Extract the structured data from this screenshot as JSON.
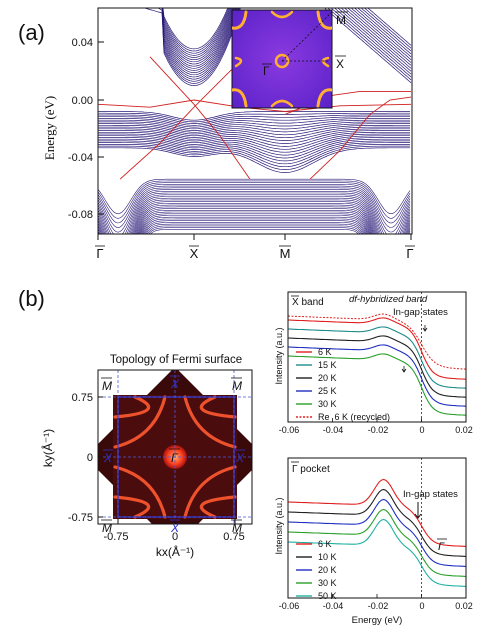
{
  "panel_a": {
    "label": "(a)",
    "ylabel": "Energy (eV)",
    "yticks": [
      "0.04",
      "0.00",
      "-0.04",
      "-0.08"
    ],
    "xticks": [
      "Γ",
      "X",
      "M",
      "Γ"
    ],
    "inset_labels": {
      "gamma": "Γ",
      "x": "X",
      "m": "M"
    },
    "colors": {
      "bulk_bands": "#2a1a78",
      "surface_bands": "#d02020",
      "inset_bg": "#6a2ad8",
      "inset_hot": "#ffb030"
    }
  },
  "panel_b": {
    "label": "(b)",
    "fermi_map": {
      "title": "Topology of Fermi surface",
      "xlabel": "kx(Å⁻¹)",
      "ylabel": "ky(Å⁻¹)",
      "xticks": [
        "-0.75",
        "0",
        "0.75"
      ],
      "yticks": [
        "0.75",
        "0",
        "-0.75"
      ],
      "point_labels": {
        "m": "M",
        "x": "X",
        "gamma": "Γ"
      },
      "colors": {
        "background": "#3a0a0a",
        "band": "#ff5a30",
        "bz": "#3030c8"
      }
    },
    "top_right": {
      "title": "X band",
      "annotation_hybrid": "df-hybridized band",
      "annotation_ingap": "In-gap states",
      "ylabel": "Intensity (a.u.)",
      "xticks": [
        "-0.06",
        "-0.04",
        "-0.02",
        "0",
        "0.02"
      ],
      "legend": [
        "6 K",
        "15 K",
        "20 K",
        "25 K",
        "30 K",
        "Re_6 K (recycled)"
      ],
      "colors": [
        "#e02020",
        "#1f8a8a",
        "#202020",
        "#2030c0",
        "#2aa02a",
        "#e02020"
      ]
    },
    "bottom_right": {
      "title": "Γ pocket",
      "annotation_ingap": "In-gap states",
      "gamma_label": "Γ",
      "ylabel": "Intensity (a.u.)",
      "xlabel": "Energy (eV)",
      "xticks": [
        "-0.06",
        "-0.04",
        "-0.02",
        "0",
        "0.02"
      ],
      "legend": [
        "6 K",
        "10 K",
        "20 K",
        "30 K",
        "50 K"
      ],
      "colors": [
        "#e02020",
        "#202020",
        "#2030c0",
        "#2aa02a",
        "#1fb0a0"
      ]
    }
  },
  "chart_data": [
    {
      "type": "line",
      "panel": "a",
      "ylabel": "Energy (eV)",
      "ylim": [
        -0.1,
        0.06
      ],
      "x_categories": [
        "Γ",
        "X",
        "M",
        "Γ"
      ],
      "yticks": [
        0.04,
        0.0,
        -0.04,
        -0.08
      ]
    },
    {
      "type": "heatmap",
      "panel": "b-left",
      "title": "Topology of Fermi surface",
      "xlabel": "kx(Å⁻¹)",
      "ylabel": "ky(Å⁻¹)",
      "xlim": [
        -1.0,
        1.0
      ],
      "ylim": [
        -1.0,
        1.0
      ],
      "xticks": [
        -0.75,
        0,
        0.75
      ],
      "yticks": [
        0.75,
        0,
        -0.75
      ]
    },
    {
      "type": "line",
      "panel": "b-top-right",
      "title": "X band",
      "ylabel": "Intensity (a.u.)",
      "xlim": [
        -0.06,
        0.02
      ],
      "xticks": [
        -0.06,
        -0.04,
        -0.02,
        0,
        0.02
      ],
      "series": [
        {
          "name": "6 K",
          "offset": 4
        },
        {
          "name": "15 K",
          "offset": 3
        },
        {
          "name": "20 K",
          "offset": 2
        },
        {
          "name": "25 K",
          "offset": 1
        },
        {
          "name": "30 K",
          "offset": 0
        },
        {
          "name": "Re_6 K (recycled)",
          "offset": 4
        }
      ]
    },
    {
      "type": "line",
      "panel": "b-bottom-right",
      "title": "Γ pocket",
      "xlabel": "Energy (eV)",
      "ylabel": "Intensity (a.u.)",
      "xlim": [
        -0.06,
        0.02
      ],
      "xticks": [
        -0.06,
        -0.04,
        -0.02,
        0,
        0.02
      ],
      "series": [
        {
          "name": "6 K",
          "offset": 4
        },
        {
          "name": "10 K",
          "offset": 3
        },
        {
          "name": "20 K",
          "offset": 2
        },
        {
          "name": "30 K",
          "offset": 1
        },
        {
          "name": "50 K",
          "offset": 0
        }
      ]
    }
  ]
}
